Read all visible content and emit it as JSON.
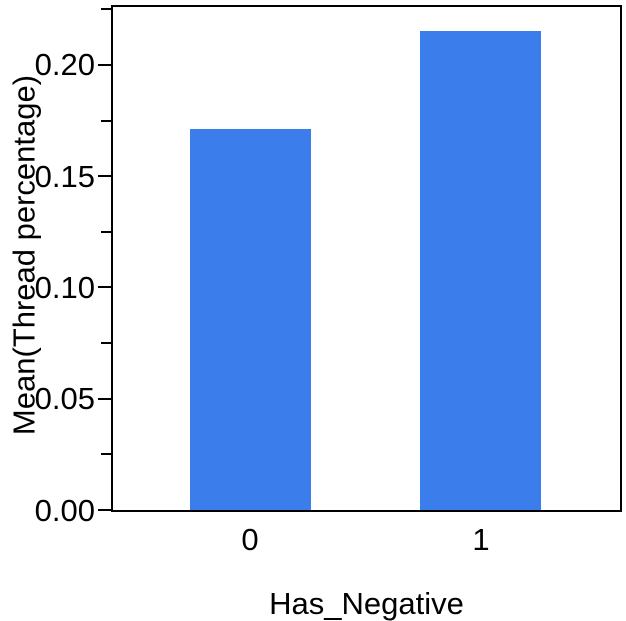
{
  "chart_data": {
    "type": "bar",
    "title": "",
    "xlabel": "Has_Negative",
    "ylabel": "Mean(Thread percentage)",
    "categories": [
      "0",
      "1"
    ],
    "values": [
      0.171,
      0.215
    ],
    "ylim": [
      0,
      0.226
    ],
    "y_major_ticks": [
      0,
      0.05,
      0.1,
      0.15,
      0.2
    ],
    "y_major_tick_labels": [
      "0.00",
      "0.05",
      "0.10",
      "0.15",
      "0.20"
    ],
    "y_minor_ticks": [
      0.025,
      0.075,
      0.125,
      0.175,
      0.225
    ],
    "grid": false,
    "legend": "none",
    "bar_color": "#3B7DEB",
    "axis_color": "#000000",
    "background": "#FFFFFF"
  }
}
